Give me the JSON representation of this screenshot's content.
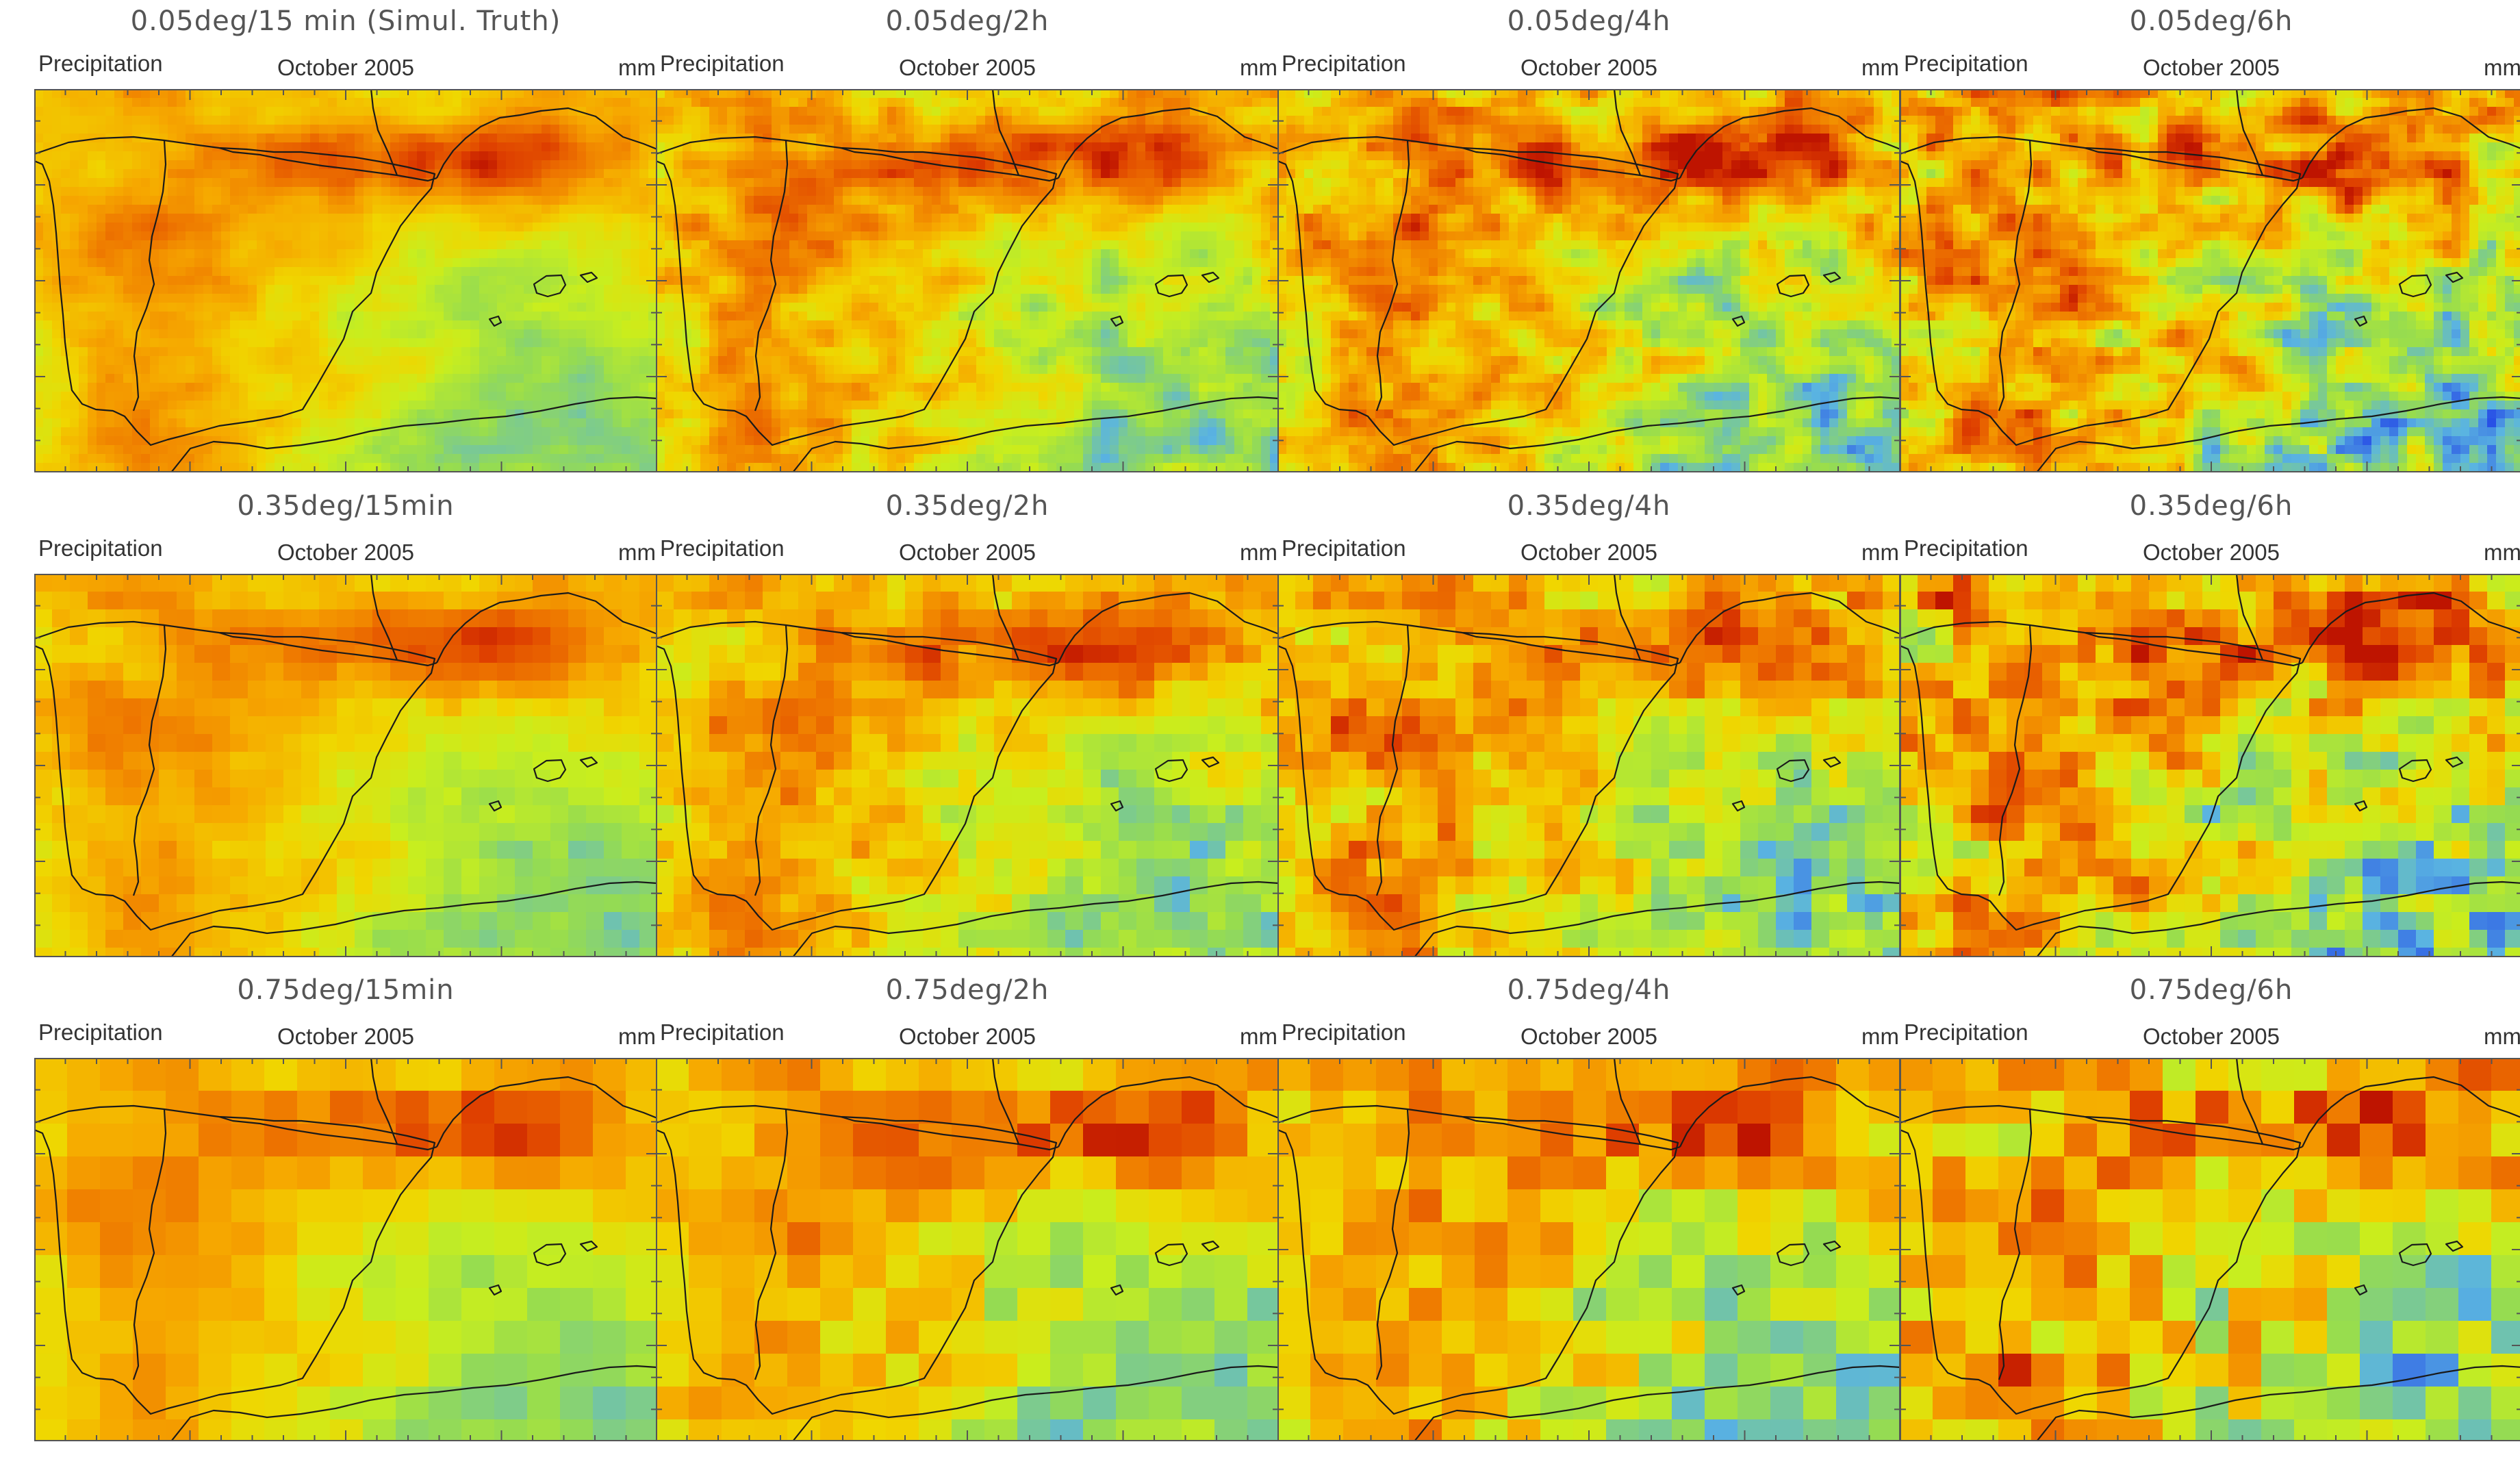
{
  "figure": {
    "panels": [
      {
        "title": "0.05deg/15 min (Simul. Truth)",
        "variable": "Precipitation",
        "period": "October 2005",
        "unit": "mm",
        "res": 0.05,
        "accum": "15min"
      },
      {
        "title": "0.05deg/2h",
        "variable": "Precipitation",
        "period": "October 2005",
        "unit": "mm",
        "res": 0.05,
        "accum": "2h"
      },
      {
        "title": "0.05deg/4h",
        "variable": "Precipitation",
        "period": "October 2005",
        "unit": "mm",
        "res": 0.05,
        "accum": "4h"
      },
      {
        "title": "0.05deg/6h",
        "variable": "Precipitation",
        "period": "October 2005",
        "unit": "mm",
        "res": 0.05,
        "accum": "6h"
      },
      {
        "title": "0.35deg/15min",
        "variable": "Precipitation",
        "period": "October 2005",
        "unit": "mm",
        "res": 0.35,
        "accum": "15min"
      },
      {
        "title": "0.35deg/2h",
        "variable": "Precipitation",
        "period": "October 2005",
        "unit": "mm",
        "res": 0.35,
        "accum": "2h"
      },
      {
        "title": "0.35deg/4h",
        "variable": "Precipitation",
        "period": "October 2005",
        "unit": "mm",
        "res": 0.35,
        "accum": "4h"
      },
      {
        "title": "0.35deg/6h",
        "variable": "Precipitation",
        "period": "October 2005",
        "unit": "mm",
        "res": 0.35,
        "accum": "6h"
      },
      {
        "title": "0.75deg/15min",
        "variable": "Precipitation",
        "period": "October 2005",
        "unit": "mm",
        "res": 0.75,
        "accum": "15min"
      },
      {
        "title": "0.75deg/2h",
        "variable": "Precipitation",
        "period": "October 2005",
        "unit": "mm",
        "res": 0.75,
        "accum": "2h"
      },
      {
        "title": "0.75deg/4h",
        "variable": "Precipitation",
        "period": "October 2005",
        "unit": "mm",
        "res": 0.75,
        "accum": "4h"
      },
      {
        "title": "0.75deg/6h",
        "variable": "Precipitation",
        "period": "October 2005",
        "unit": "mm",
        "res": 0.75,
        "accum": "6h"
      }
    ]
  },
  "colors": {
    "high": "#cf2a00",
    "mid_high": "#ee7a00",
    "mid": "#f6a800",
    "mid_low": "#ecd400",
    "low": "#c0ec1c",
    "lowest": "#60b8e0",
    "coastline": "#1a1a1a",
    "frame": "#555555"
  }
}
